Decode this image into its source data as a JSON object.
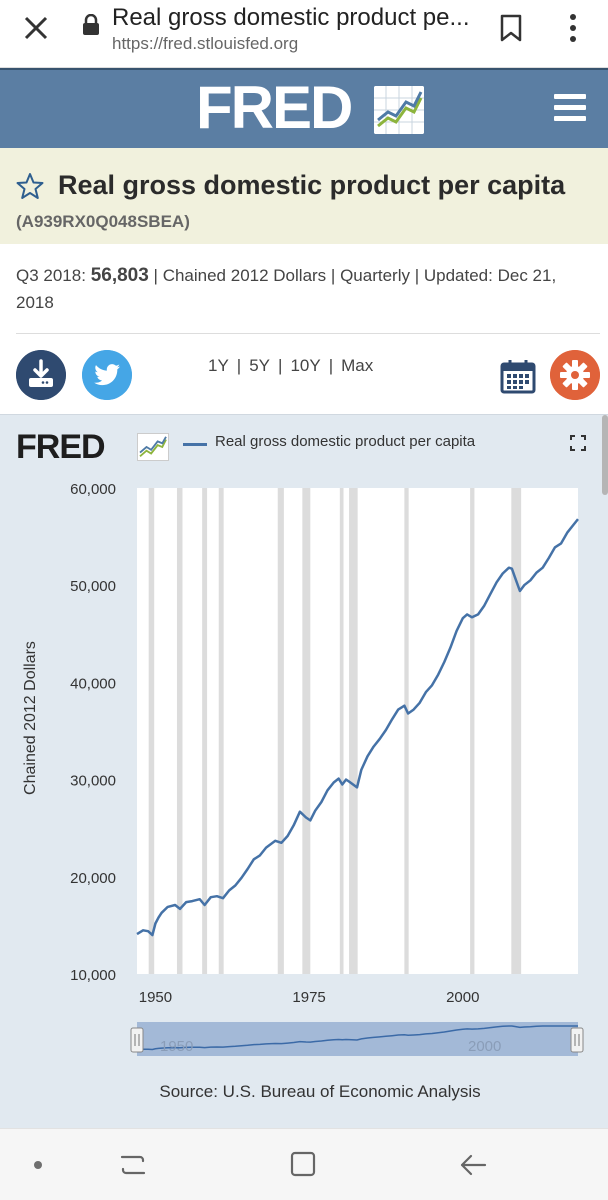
{
  "browser": {
    "title": "Real gross domestic product pe...",
    "url": "https://fred.stlouisfed.org"
  },
  "header": {
    "logo": "FRED"
  },
  "series": {
    "title": "Real gross domestic product per capita",
    "id": "(A939RX0Q048SBEA)"
  },
  "meta": {
    "period_label": "Q3 2018:",
    "value": "56,803",
    "units": "Chained 2012 Dollars",
    "frequency": "Quarterly",
    "updated_label": "Updated:",
    "updated_date": "Dec 21, 2018"
  },
  "ranges": [
    "1Y",
    "5Y",
    "10Y",
    "Max"
  ],
  "chart_panel": {
    "logo": "FRED",
    "legend": "Real gross domestic product per capita",
    "ylabel": "Chained 2012 Dollars",
    "source": "Source: U.S. Bureau of Economic Analysis",
    "navigator_labels": [
      "1950",
      "2000"
    ]
  },
  "colors": {
    "header_bg": "#5b7ea3",
    "title_bg": "#f1f1dd",
    "line": "#4572a7",
    "recession": "#dcdcdc",
    "download": "#2f4a70",
    "twitter": "#45a6e6",
    "gear": "#e0623a"
  },
  "chart_data": {
    "type": "line",
    "title": "",
    "xlabel": "",
    "ylabel": "Chained 2012 Dollars",
    "xlim": [
      1947,
      2018.75
    ],
    "ylim": [
      10000,
      60000
    ],
    "yticks": [
      10000,
      20000,
      30000,
      40000,
      50000,
      60000
    ],
    "ytick_labels": [
      "10,000",
      "20,000",
      "30,000",
      "40,000",
      "50,000",
      "60,000"
    ],
    "xticks": [
      1950,
      1975,
      2000
    ],
    "xtick_labels": [
      "1950",
      "1975",
      "2000"
    ],
    "grid": false,
    "recessions": [
      [
        1948.9,
        1949.8
      ],
      [
        1953.5,
        1954.4
      ],
      [
        1957.6,
        1958.4
      ],
      [
        1960.3,
        1961.1
      ],
      [
        1969.9,
        1970.9
      ],
      [
        1973.9,
        1975.2
      ],
      [
        1980.0,
        1980.6
      ],
      [
        1981.5,
        1982.9
      ],
      [
        1990.5,
        1991.2
      ],
      [
        2001.2,
        2001.9
      ],
      [
        2007.9,
        2009.5
      ]
    ],
    "series": [
      {
        "name": "Real gross domestic product per capita",
        "x": [
          1947.0,
          1948.0,
          1948.8,
          1949.5,
          1950.0,
          1950.5,
          1951.0,
          1952.0,
          1953.2,
          1954.0,
          1955.0,
          1956.0,
          1957.2,
          1958.0,
          1959.0,
          1960.0,
          1961.0,
          1962.0,
          1963.0,
          1964.0,
          1965.0,
          1966.0,
          1967.0,
          1968.0,
          1969.5,
          1970.5,
          1971.5,
          1972.5,
          1973.5,
          1974.5,
          1975.2,
          1976.0,
          1977.0,
          1978.0,
          1979.0,
          1979.8,
          1980.4,
          1981.0,
          1981.5,
          1982.8,
          1983.5,
          1984.5,
          1985.5,
          1986.5,
          1987.5,
          1988.5,
          1989.5,
          1990.5,
          1991.1,
          1992.0,
          1993.0,
          1994.0,
          1995.0,
          1996.0,
          1997.0,
          1998.0,
          1999.0,
          2000.0,
          2000.7,
          2001.5,
          2002.5,
          2003.5,
          2004.5,
          2005.5,
          2006.5,
          2007.5,
          2008.0,
          2008.5,
          2009.3,
          2010.0,
          2011.0,
          2012.0,
          2013.0,
          2014.0,
          2015.0,
          2016.0,
          2017.0,
          2018.0,
          2018.75
        ],
        "values": [
          14100,
          14500,
          14400,
          14000,
          15200,
          15800,
          16300,
          16900,
          17100,
          16700,
          17400,
          17500,
          17700,
          17100,
          17900,
          18000,
          17800,
          18600,
          19100,
          19900,
          20800,
          21800,
          22200,
          23000,
          23700,
          23500,
          24200,
          25300,
          26700,
          26100,
          25800,
          26800,
          27700,
          28900,
          29700,
          30100,
          29500,
          30000,
          29800,
          29200,
          31000,
          32400,
          33400,
          34200,
          35100,
          36200,
          37200,
          37600,
          36800,
          37200,
          37900,
          39000,
          39700,
          40800,
          42100,
          43600,
          45300,
          46600,
          47000,
          46700,
          47000,
          47900,
          49100,
          50300,
          51200,
          51800,
          51700,
          50800,
          49400,
          50000,
          50500,
          51300,
          51800,
          52800,
          53900,
          54300,
          55400,
          56200,
          56803
        ]
      }
    ]
  }
}
